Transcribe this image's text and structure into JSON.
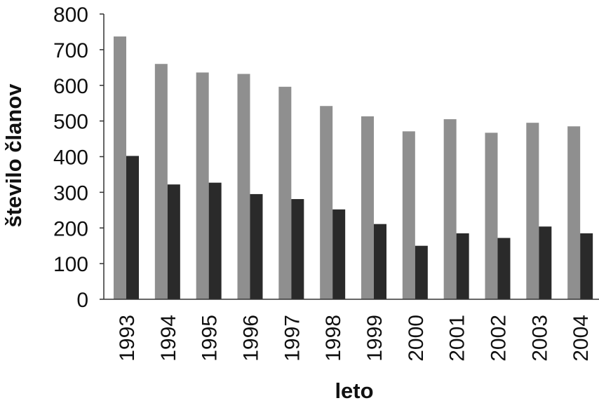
{
  "chart_data": {
    "type": "bar",
    "xlabel": "leto",
    "ylabel": "število članov",
    "ylim": [
      0,
      800
    ],
    "yticks": [
      0,
      100,
      200,
      300,
      400,
      500,
      600,
      700,
      800
    ],
    "grid": false,
    "categories": [
      "1993",
      "1994",
      "1995",
      "1996",
      "1997",
      "1998",
      "1999",
      "2000",
      "2001",
      "2002",
      "2003",
      "2004"
    ],
    "series": [
      {
        "color": "#8f8f8f",
        "values": [
          737,
          660,
          636,
          632,
          596,
          542,
          513,
          471,
          505,
          467,
          495,
          485
        ]
      },
      {
        "color": "#2a2a2a",
        "values": [
          402,
          322,
          327,
          295,
          281,
          252,
          211,
          150,
          185,
          172,
          204,
          185
        ]
      }
    ]
  }
}
